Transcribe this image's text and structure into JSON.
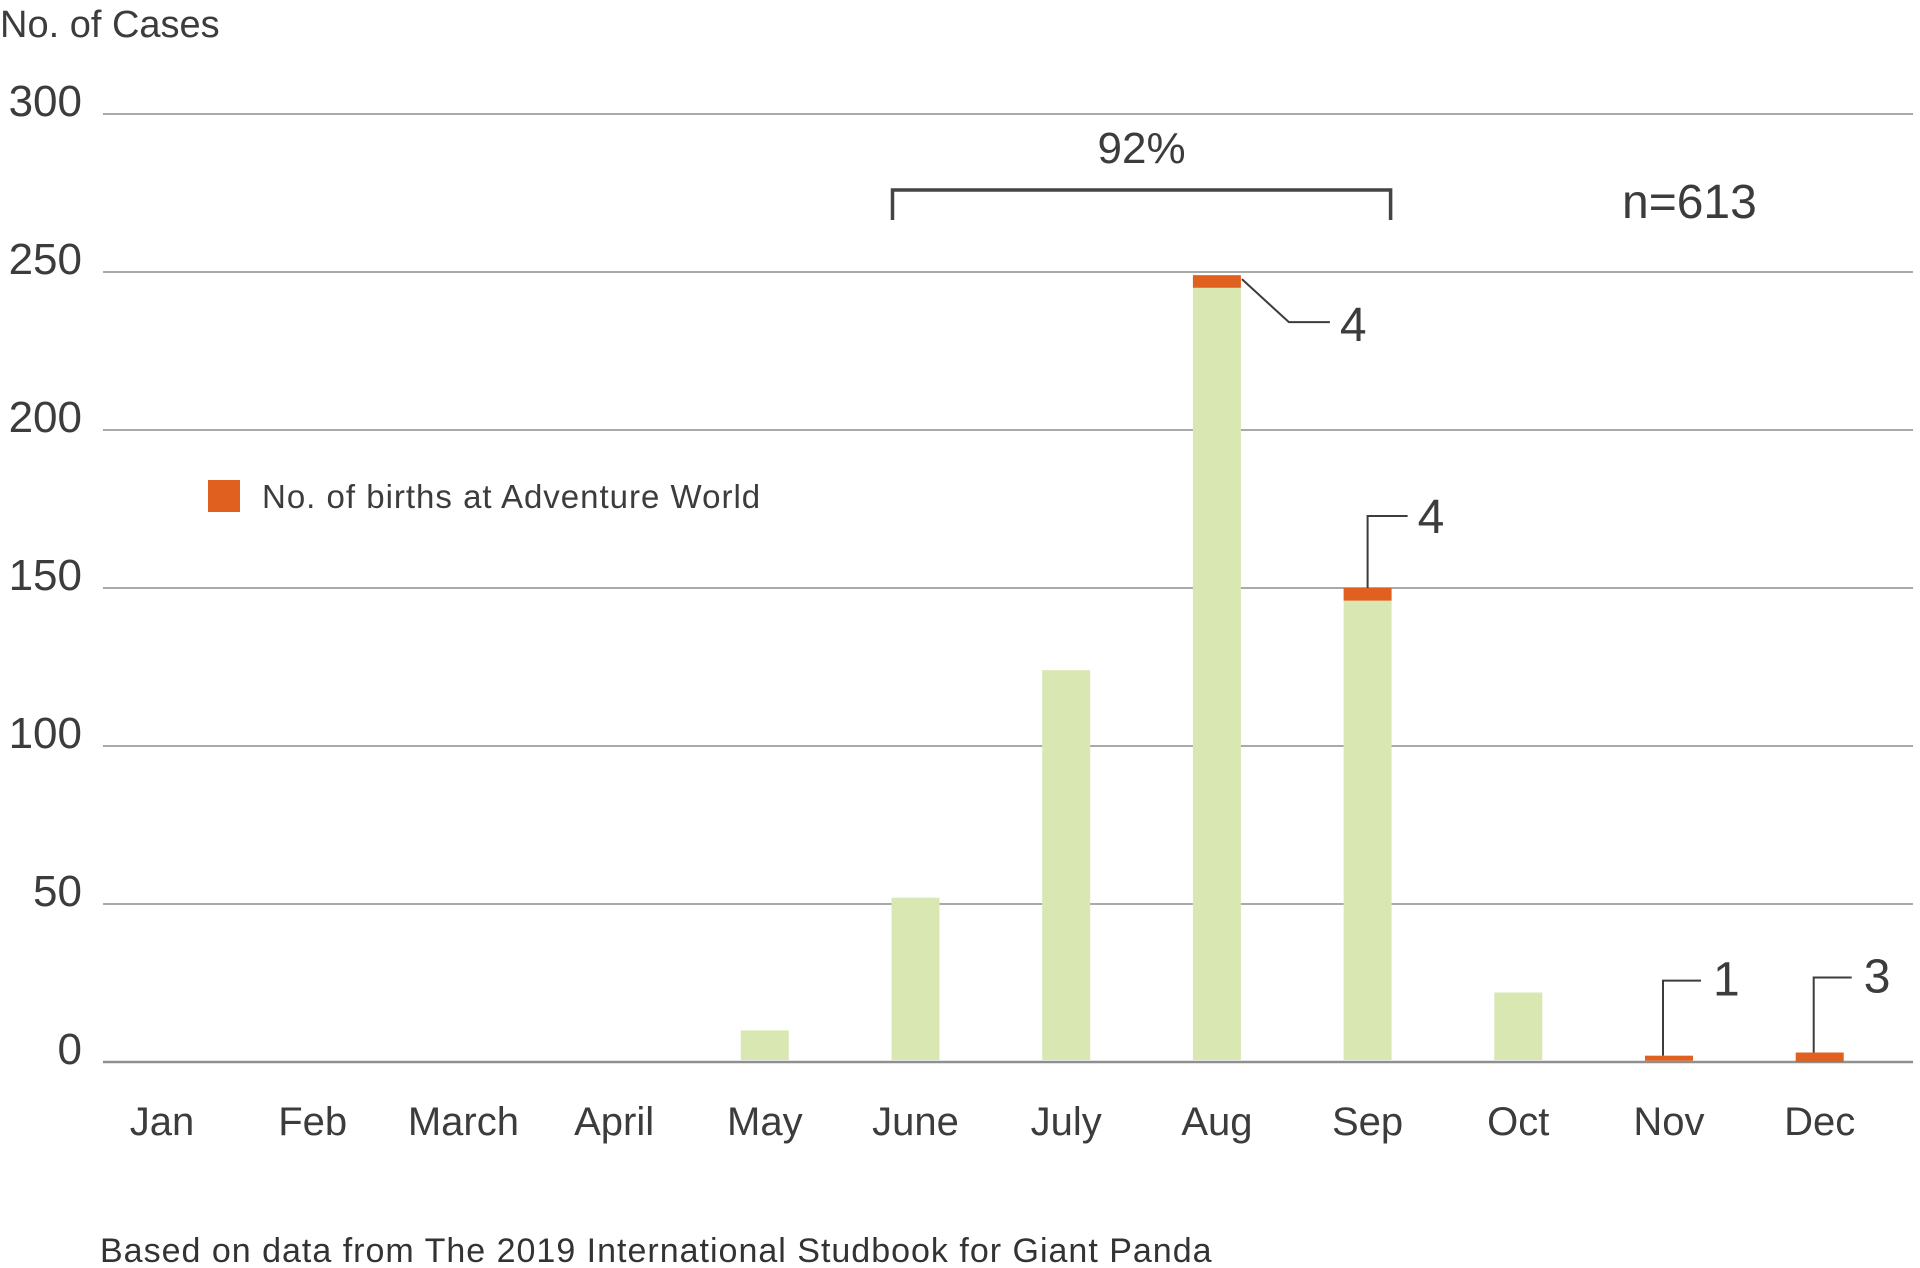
{
  "chart_data": {
    "type": "bar",
    "stacked": true,
    "ylabel": "No. of Cases",
    "ytick_labels": [
      "0",
      "50",
      "100",
      "150",
      "200",
      "250",
      "300"
    ],
    "categories": [
      "Jan",
      "Feb",
      "March",
      "April",
      "May",
      "June",
      "July",
      "Aug",
      "Sep",
      "Oct",
      "Nov",
      "Dec"
    ],
    "series": [
      {
        "values": [
          0,
          0,
          0,
          0,
          10,
          52,
          124,
          245,
          146,
          22,
          1,
          0
        ],
        "color": "#d9e8b3"
      },
      {
        "name": "No. of births at Adventure World",
        "values": [
          0,
          0,
          0,
          0,
          0,
          0,
          0,
          4,
          4,
          0,
          1,
          3
        ],
        "color": "#e0601f"
      }
    ],
    "ylim": [
      0,
      300
    ],
    "grid": true,
    "legend": {
      "position": "upper-left",
      "label": "No. of births at Adventure World",
      "color": "#e0601f"
    },
    "annotations": {
      "callouts": [
        {
          "category": "Aug",
          "label": "4"
        },
        {
          "category": "Sep",
          "label": "4"
        },
        {
          "category": "Nov",
          "label": "1"
        },
        {
          "category": "Dec",
          "label": "3"
        }
      ],
      "bracket": {
        "from": "June",
        "to": "Sep",
        "label": "92%"
      },
      "total_label": "n=613"
    },
    "source_note": "Based on data from The 2019 International Studbook for Giant Panda"
  }
}
